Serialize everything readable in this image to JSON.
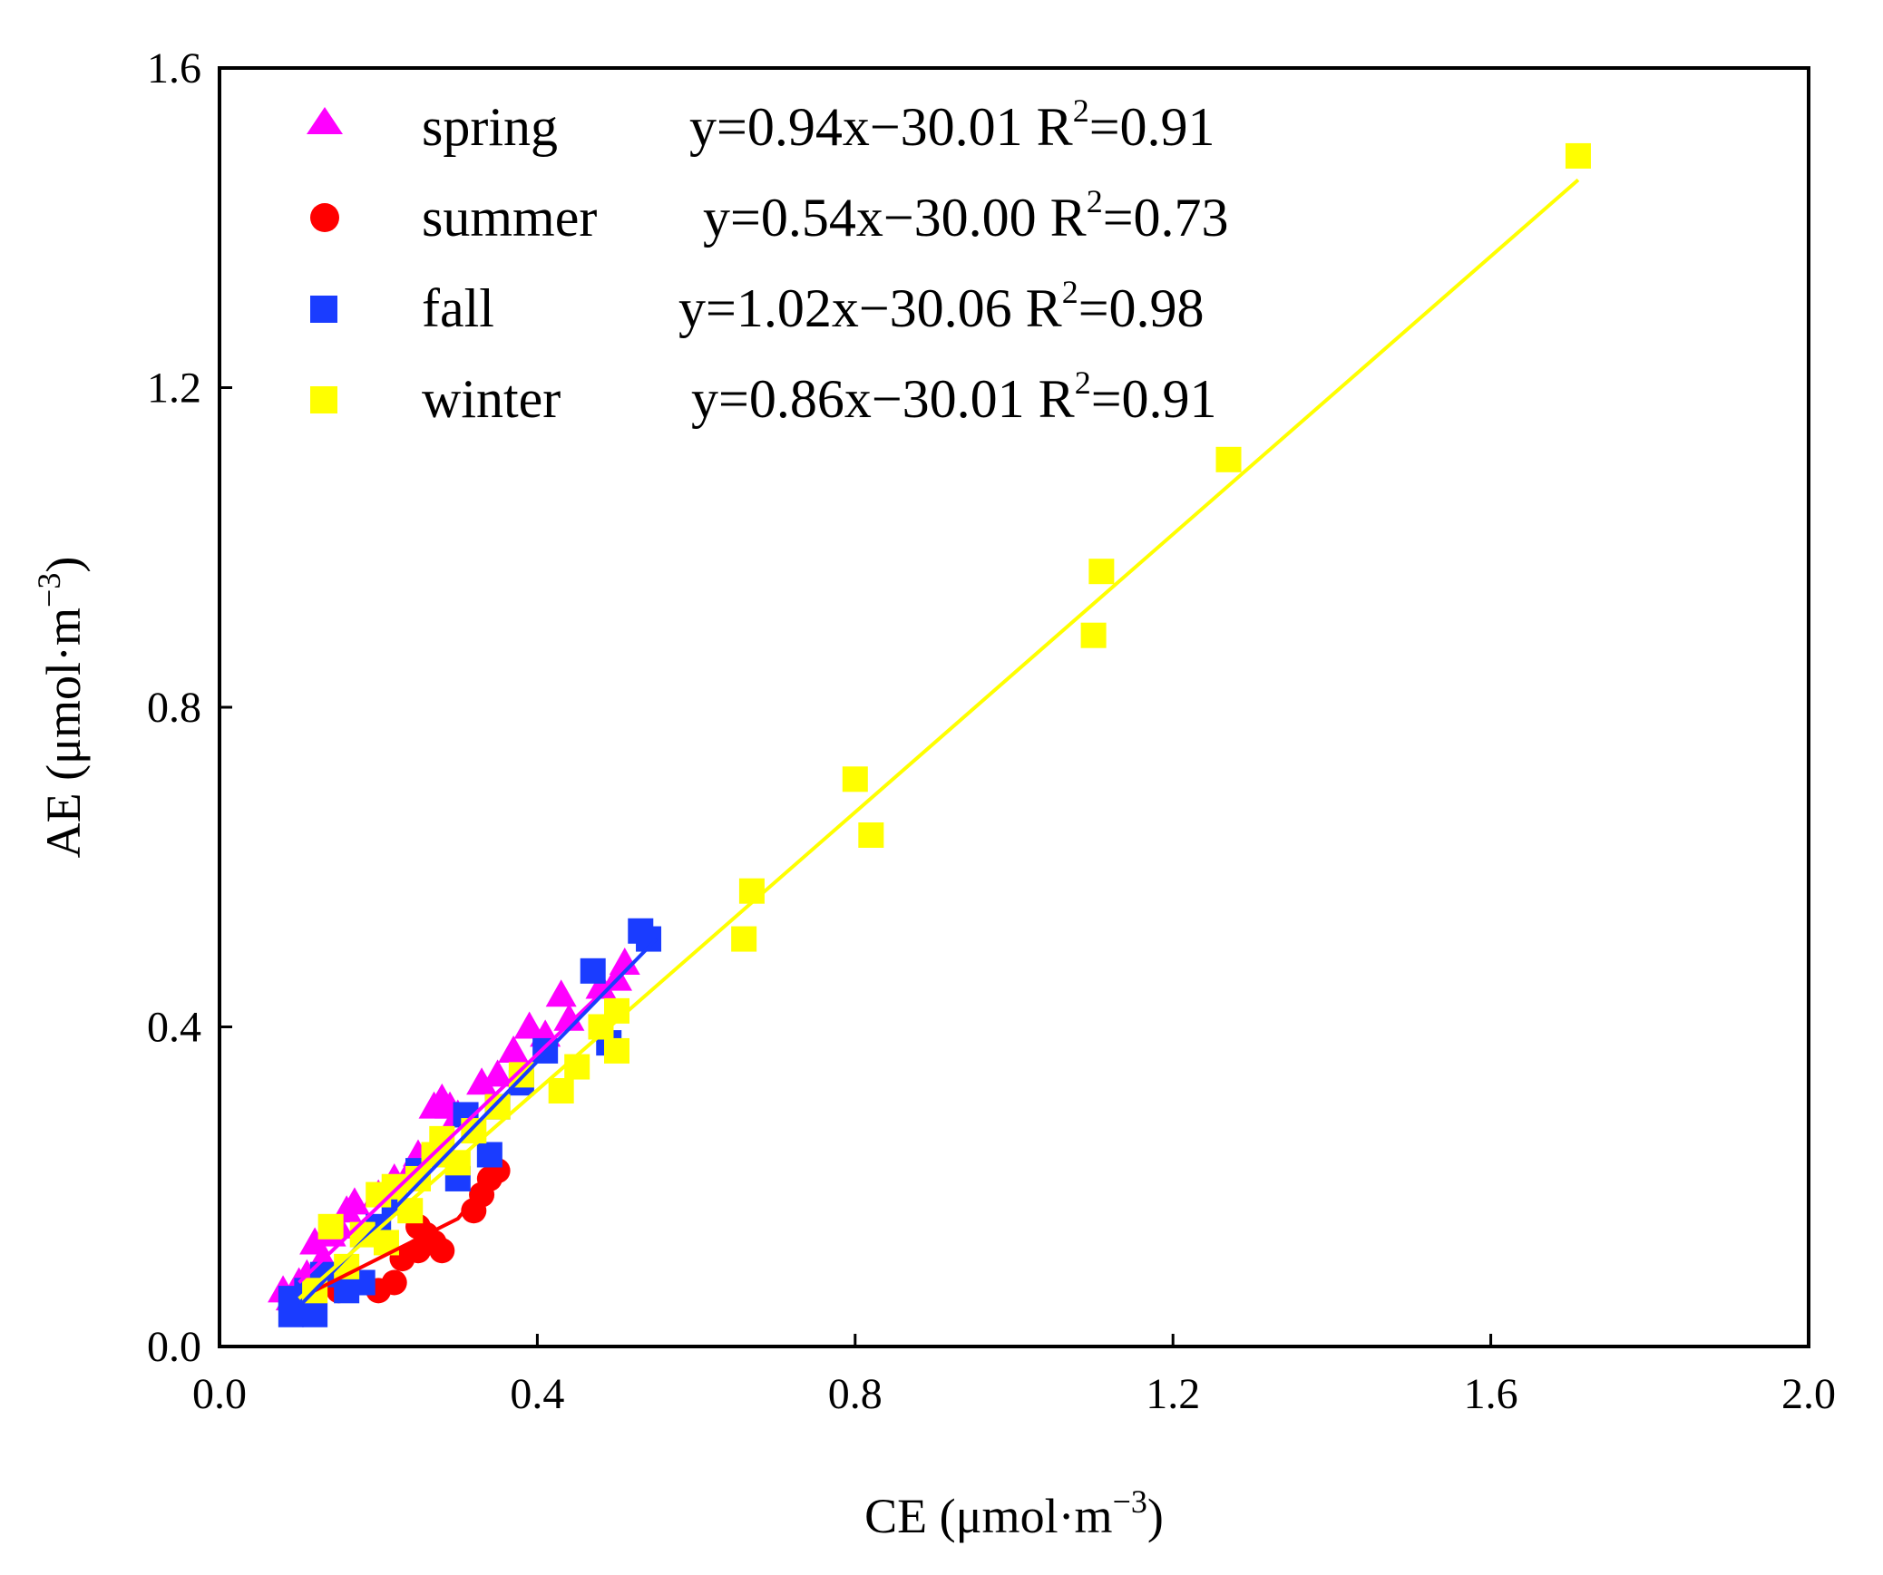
{
  "chart_data": {
    "type": "scatter",
    "xlabel": {
      "main": "CE (μmol·m",
      "exp": "−3",
      "close": ")"
    },
    "ylabel": {
      "main": "AE (μmol·m",
      "exp": "−3",
      "close": ")"
    },
    "xlim": [
      0.0,
      2.0
    ],
    "ylim": [
      0.0,
      1.6
    ],
    "xticks": [
      "0.0",
      "0.4",
      "0.8",
      "1.2",
      "1.6",
      "2.0"
    ],
    "yticks": [
      "0.0",
      "0.4",
      "0.8",
      "1.2",
      "1.6"
    ],
    "legend_position": "top-left",
    "series": [
      {
        "name": "spring",
        "marker": "triangle",
        "color": "#ff00ff",
        "equation": "y=0.94x−30.01 R",
        "r2": "=0.91",
        "fit": [
          [
            0.1,
            0.08
          ],
          [
            0.52,
            0.48
          ]
        ],
        "points": [
          [
            0.08,
            0.07
          ],
          [
            0.09,
            0.06
          ],
          [
            0.1,
            0.08
          ],
          [
            0.11,
            0.09
          ],
          [
            0.12,
            0.13
          ],
          [
            0.13,
            0.11
          ],
          [
            0.14,
            0.14
          ],
          [
            0.15,
            0.15
          ],
          [
            0.16,
            0.17
          ],
          [
            0.17,
            0.18
          ],
          [
            0.2,
            0.19
          ],
          [
            0.22,
            0.21
          ],
          [
            0.24,
            0.22
          ],
          [
            0.25,
            0.24
          ],
          [
            0.27,
            0.3
          ],
          [
            0.28,
            0.31
          ],
          [
            0.29,
            0.3
          ],
          [
            0.3,
            0.29
          ],
          [
            0.33,
            0.33
          ],
          [
            0.35,
            0.34
          ],
          [
            0.37,
            0.37
          ],
          [
            0.39,
            0.4
          ],
          [
            0.41,
            0.39
          ],
          [
            0.43,
            0.44
          ],
          [
            0.44,
            0.41
          ],
          [
            0.48,
            0.45
          ],
          [
            0.5,
            0.46
          ],
          [
            0.51,
            0.48
          ]
        ]
      },
      {
        "name": "summer",
        "marker": "circle",
        "color": "#ff0000",
        "equation": "y=0.54x−30.00 R",
        "r2": "=0.73",
        "fit": [
          [
            0.12,
            0.07
          ],
          [
            0.2,
            0.11
          ],
          [
            0.3,
            0.16
          ],
          [
            0.35,
            0.22
          ]
        ],
        "points": [
          [
            0.15,
            0.07
          ],
          [
            0.17,
            0.08
          ],
          [
            0.2,
            0.07
          ],
          [
            0.22,
            0.08
          ],
          [
            0.23,
            0.11
          ],
          [
            0.25,
            0.12
          ],
          [
            0.25,
            0.15
          ],
          [
            0.26,
            0.14
          ],
          [
            0.27,
            0.13
          ],
          [
            0.28,
            0.12
          ],
          [
            0.32,
            0.17
          ],
          [
            0.33,
            0.19
          ],
          [
            0.34,
            0.21
          ],
          [
            0.35,
            0.22
          ]
        ]
      },
      {
        "name": "fall",
        "marker": "square",
        "color": "#1a3cff",
        "equation": "y=1.02x−30.06 R",
        "r2": "=0.98",
        "fit": [
          [
            0.1,
            0.05
          ],
          [
            0.55,
            0.51
          ]
        ],
        "points": [
          [
            0.09,
            0.04
          ],
          [
            0.09,
            0.06
          ],
          [
            0.1,
            0.05
          ],
          [
            0.11,
            0.07
          ],
          [
            0.12,
            0.04
          ],
          [
            0.13,
            0.09
          ],
          [
            0.16,
            0.07
          ],
          [
            0.18,
            0.08
          ],
          [
            0.2,
            0.15
          ],
          [
            0.22,
            0.18
          ],
          [
            0.25,
            0.22
          ],
          [
            0.3,
            0.21
          ],
          [
            0.31,
            0.29
          ],
          [
            0.34,
            0.24
          ],
          [
            0.35,
            0.3
          ],
          [
            0.38,
            0.33
          ],
          [
            0.41,
            0.37
          ],
          [
            0.47,
            0.47
          ],
          [
            0.49,
            0.38
          ],
          [
            0.53,
            0.52
          ],
          [
            0.54,
            0.51
          ]
        ]
      },
      {
        "name": "winter",
        "marker": "square",
        "color": "#ffff00",
        "equation": "y=0.86x−30.01 R",
        "r2": "=0.91",
        "fit": [
          [
            0.1,
            0.06
          ],
          [
            1.71,
            1.46
          ]
        ],
        "points": [
          [
            0.12,
            0.07
          ],
          [
            0.14,
            0.15
          ],
          [
            0.16,
            0.1
          ],
          [
            0.18,
            0.14
          ],
          [
            0.2,
            0.19
          ],
          [
            0.21,
            0.13
          ],
          [
            0.22,
            0.2
          ],
          [
            0.24,
            0.17
          ],
          [
            0.25,
            0.21
          ],
          [
            0.27,
            0.24
          ],
          [
            0.28,
            0.26
          ],
          [
            0.3,
            0.23
          ],
          [
            0.32,
            0.27
          ],
          [
            0.35,
            0.3
          ],
          [
            0.38,
            0.34
          ],
          [
            0.43,
            0.32
          ],
          [
            0.45,
            0.35
          ],
          [
            0.48,
            0.4
          ],
          [
            0.5,
            0.37
          ],
          [
            0.5,
            0.42
          ],
          [
            0.66,
            0.51
          ],
          [
            0.67,
            0.57
          ],
          [
            0.8,
            0.71
          ],
          [
            0.82,
            0.64
          ],
          [
            1.1,
            0.89
          ],
          [
            1.11,
            0.97
          ],
          [
            1.27,
            1.11
          ],
          [
            1.71,
            1.49
          ]
        ]
      }
    ]
  }
}
